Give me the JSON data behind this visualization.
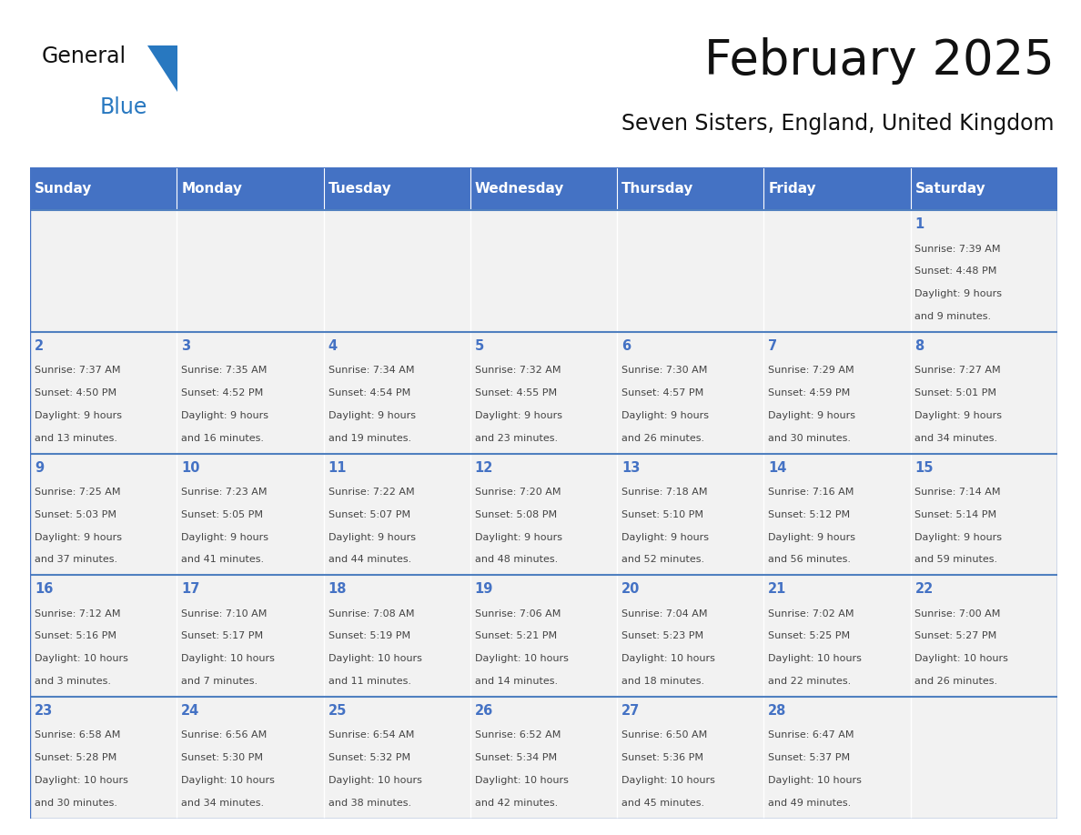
{
  "title": "February 2025",
  "subtitle": "Seven Sisters, England, United Kingdom",
  "days_of_week": [
    "Sunday",
    "Monday",
    "Tuesday",
    "Wednesday",
    "Thursday",
    "Friday",
    "Saturday"
  ],
  "header_bg": "#4472C4",
  "header_text": "#FFFFFF",
  "cell_bg": "#F2F2F2",
  "border_color": "#4472C4",
  "row_divider_color": "#5080C0",
  "day_number_color": "#4472C4",
  "text_color": "#444444",
  "title_color": "#111111",
  "subtitle_color": "#111111",
  "logo_color_general": "#111111",
  "logo_color_blue": "#2878C0",
  "logo_triangle_color": "#2878C0",
  "calendar": [
    [
      null,
      null,
      null,
      null,
      null,
      null,
      {
        "day": "1",
        "sunrise": "7:39 AM",
        "sunset": "4:48 PM",
        "daylight": "9 hours",
        "daylight2": "and 9 minutes."
      }
    ],
    [
      {
        "day": "2",
        "sunrise": "7:37 AM",
        "sunset": "4:50 PM",
        "daylight": "9 hours",
        "daylight2": "and 13 minutes."
      },
      {
        "day": "3",
        "sunrise": "7:35 AM",
        "sunset": "4:52 PM",
        "daylight": "9 hours",
        "daylight2": "and 16 minutes."
      },
      {
        "day": "4",
        "sunrise": "7:34 AM",
        "sunset": "4:54 PM",
        "daylight": "9 hours",
        "daylight2": "and 19 minutes."
      },
      {
        "day": "5",
        "sunrise": "7:32 AM",
        "sunset": "4:55 PM",
        "daylight": "9 hours",
        "daylight2": "and 23 minutes."
      },
      {
        "day": "6",
        "sunrise": "7:30 AM",
        "sunset": "4:57 PM",
        "daylight": "9 hours",
        "daylight2": "and 26 minutes."
      },
      {
        "day": "7",
        "sunrise": "7:29 AM",
        "sunset": "4:59 PM",
        "daylight": "9 hours",
        "daylight2": "and 30 minutes."
      },
      {
        "day": "8",
        "sunrise": "7:27 AM",
        "sunset": "5:01 PM",
        "daylight": "9 hours",
        "daylight2": "and 34 minutes."
      }
    ],
    [
      {
        "day": "9",
        "sunrise": "7:25 AM",
        "sunset": "5:03 PM",
        "daylight": "9 hours",
        "daylight2": "and 37 minutes."
      },
      {
        "day": "10",
        "sunrise": "7:23 AM",
        "sunset": "5:05 PM",
        "daylight": "9 hours",
        "daylight2": "and 41 minutes."
      },
      {
        "day": "11",
        "sunrise": "7:22 AM",
        "sunset": "5:07 PM",
        "daylight": "9 hours",
        "daylight2": "and 44 minutes."
      },
      {
        "day": "12",
        "sunrise": "7:20 AM",
        "sunset": "5:08 PM",
        "daylight": "9 hours",
        "daylight2": "and 48 minutes."
      },
      {
        "day": "13",
        "sunrise": "7:18 AM",
        "sunset": "5:10 PM",
        "daylight": "9 hours",
        "daylight2": "and 52 minutes."
      },
      {
        "day": "14",
        "sunrise": "7:16 AM",
        "sunset": "5:12 PM",
        "daylight": "9 hours",
        "daylight2": "and 56 minutes."
      },
      {
        "day": "15",
        "sunrise": "7:14 AM",
        "sunset": "5:14 PM",
        "daylight": "9 hours",
        "daylight2": "and 59 minutes."
      }
    ],
    [
      {
        "day": "16",
        "sunrise": "7:12 AM",
        "sunset": "5:16 PM",
        "daylight": "10 hours",
        "daylight2": "and 3 minutes."
      },
      {
        "day": "17",
        "sunrise": "7:10 AM",
        "sunset": "5:17 PM",
        "daylight": "10 hours",
        "daylight2": "and 7 minutes."
      },
      {
        "day": "18",
        "sunrise": "7:08 AM",
        "sunset": "5:19 PM",
        "daylight": "10 hours",
        "daylight2": "and 11 minutes."
      },
      {
        "day": "19",
        "sunrise": "7:06 AM",
        "sunset": "5:21 PM",
        "daylight": "10 hours",
        "daylight2": "and 14 minutes."
      },
      {
        "day": "20",
        "sunrise": "7:04 AM",
        "sunset": "5:23 PM",
        "daylight": "10 hours",
        "daylight2": "and 18 minutes."
      },
      {
        "day": "21",
        "sunrise": "7:02 AM",
        "sunset": "5:25 PM",
        "daylight": "10 hours",
        "daylight2": "and 22 minutes."
      },
      {
        "day": "22",
        "sunrise": "7:00 AM",
        "sunset": "5:27 PM",
        "daylight": "10 hours",
        "daylight2": "and 26 minutes."
      }
    ],
    [
      {
        "day": "23",
        "sunrise": "6:58 AM",
        "sunset": "5:28 PM",
        "daylight": "10 hours",
        "daylight2": "and 30 minutes."
      },
      {
        "day": "24",
        "sunrise": "6:56 AM",
        "sunset": "5:30 PM",
        "daylight": "10 hours",
        "daylight2": "and 34 minutes."
      },
      {
        "day": "25",
        "sunrise": "6:54 AM",
        "sunset": "5:32 PM",
        "daylight": "10 hours",
        "daylight2": "and 38 minutes."
      },
      {
        "day": "26",
        "sunrise": "6:52 AM",
        "sunset": "5:34 PM",
        "daylight": "10 hours",
        "daylight2": "and 42 minutes."
      },
      {
        "day": "27",
        "sunrise": "6:50 AM",
        "sunset": "5:36 PM",
        "daylight": "10 hours",
        "daylight2": "and 45 minutes."
      },
      {
        "day": "28",
        "sunrise": "6:47 AM",
        "sunset": "5:37 PM",
        "daylight": "10 hours",
        "daylight2": "and 49 minutes."
      },
      null
    ]
  ]
}
